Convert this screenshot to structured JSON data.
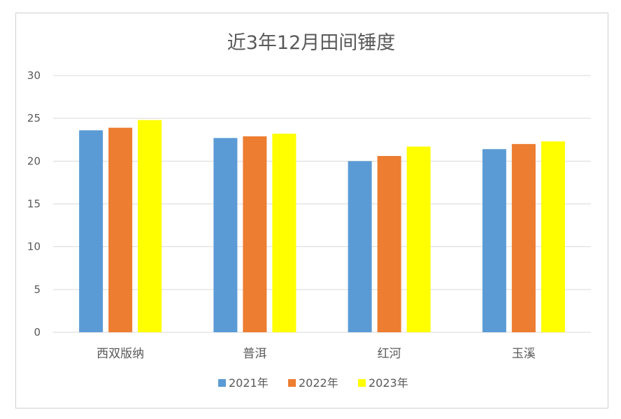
{
  "chart_data": {
    "type": "bar",
    "title": "近3年12月田间锤度",
    "categories": [
      "西双版纳",
      "普洱",
      "红河",
      "玉溪"
    ],
    "series": [
      {
        "name": "2021年",
        "color": "#5B9BD5",
        "values": [
          23.6,
          22.7,
          20.0,
          21.4
        ]
      },
      {
        "name": "2022年",
        "color": "#ED7D31",
        "values": [
          23.9,
          22.9,
          20.6,
          22.0
        ]
      },
      {
        "name": "2023年",
        "color": "#FFFF00",
        "values": [
          24.8,
          23.2,
          21.7,
          22.3
        ]
      }
    ],
    "ylim": [
      0,
      30
    ],
    "yticks": [
      0,
      5,
      10,
      15,
      20,
      25,
      30
    ],
    "grid": true,
    "legend_position": "bottom"
  }
}
